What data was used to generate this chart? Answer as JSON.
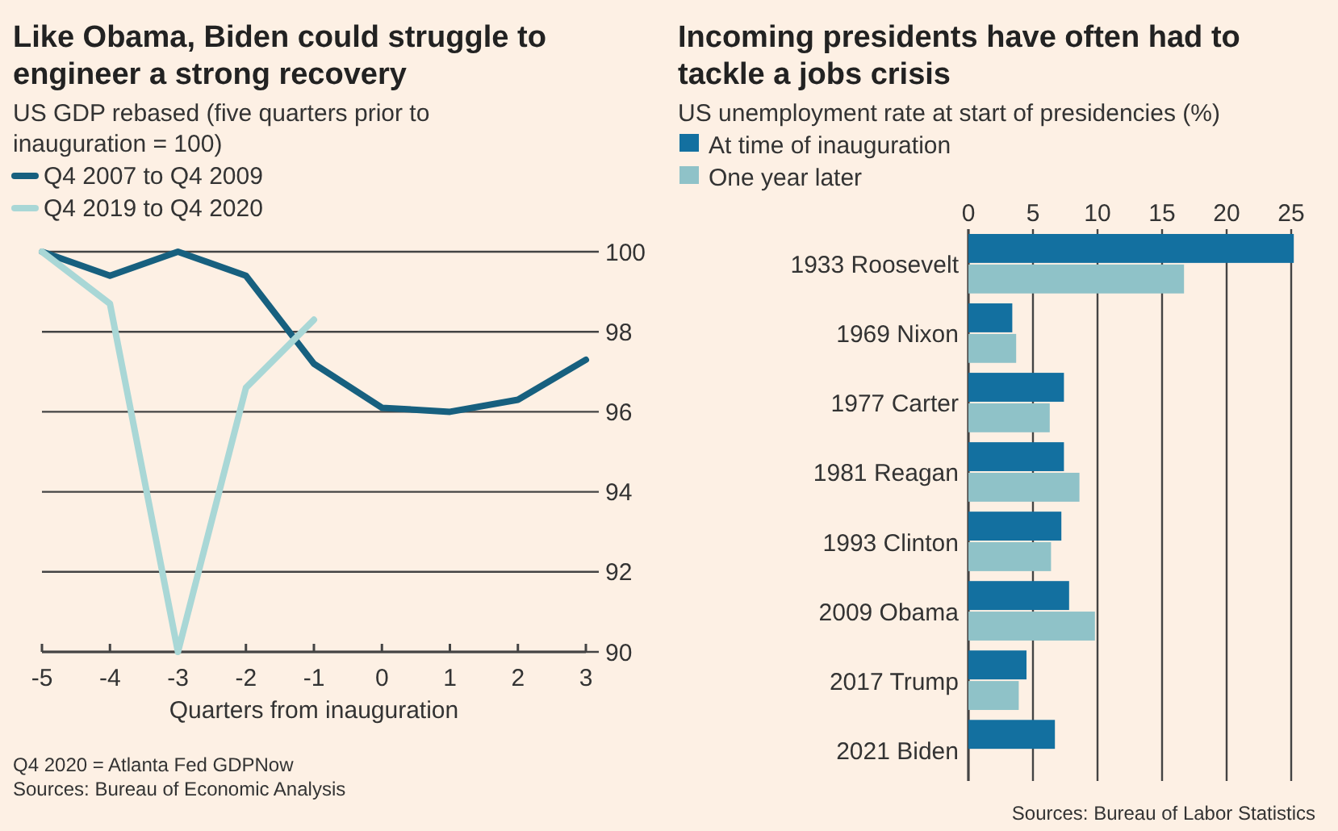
{
  "chart_data": [
    {
      "type": "line",
      "title": "Like Obama, Biden could struggle to engineer a strong recovery",
      "subtitle": "US GDP rebased (five quarters prior to inauguration = 100)",
      "xlabel": "Quarters from inauguration",
      "series": [
        {
          "name": "Q4 2007 to Q4 2009",
          "color": "#17607f",
          "x": [
            -5,
            -4,
            -3,
            -2,
            -1,
            0,
            1,
            2,
            3
          ],
          "values": [
            100,
            99.4,
            100,
            99.4,
            97.2,
            96.1,
            96.0,
            96.3,
            97.3
          ]
        },
        {
          "name": "Q4 2019 to Q4 2020",
          "color": "#a9d7d6",
          "x": [
            -5,
            -4,
            -3,
            -2,
            -1
          ],
          "values": [
            100,
            98.7,
            90,
            96.6,
            98.3
          ]
        }
      ],
      "xlim": [
        -5,
        3
      ],
      "xticks": [
        -5,
        -4,
        -3,
        -2,
        -1,
        0,
        1,
        2,
        3
      ],
      "ylim": [
        90,
        100
      ],
      "yticks": [
        90,
        92,
        94,
        96,
        98,
        100
      ],
      "grid": "y",
      "legend": "top left",
      "marker": "none",
      "line_style": "solid",
      "annotations": [
        "Q4 2020 = Atlanta Fed GDPNow",
        "Sources: Bureau of Economic Analysis"
      ]
    },
    {
      "type": "bar",
      "orientation": "horizontal",
      "title": "Incoming presidents have often had to tackle a jobs crisis",
      "subtitle": "US unemployment rate at start of presidencies (%)",
      "categories": [
        "1933 Roosevelt",
        "1969 Nixon",
        "1977 Carter",
        "1981 Reagan",
        "1993 Clinton",
        "2009 Obama",
        "2017 Trump",
        "2021 Biden"
      ],
      "series": [
        {
          "name": "At time of inauguration",
          "color": "#1370a0",
          "values": [
            25.2,
            3.4,
            7.4,
            7.4,
            7.2,
            7.8,
            4.5,
            6.7
          ]
        },
        {
          "name": "One year later",
          "color": "#8fc2c8",
          "values": [
            16.7,
            3.7,
            6.3,
            8.6,
            6.4,
            9.8,
            3.9,
            null
          ]
        }
      ],
      "xlim": [
        0,
        25.5
      ],
      "xticks": [
        0,
        5,
        10,
        15,
        20,
        25
      ],
      "grid": "x",
      "legend": "top left",
      "annotations": [
        "Sources: Bureau of Labor Statistics"
      ]
    }
  ]
}
